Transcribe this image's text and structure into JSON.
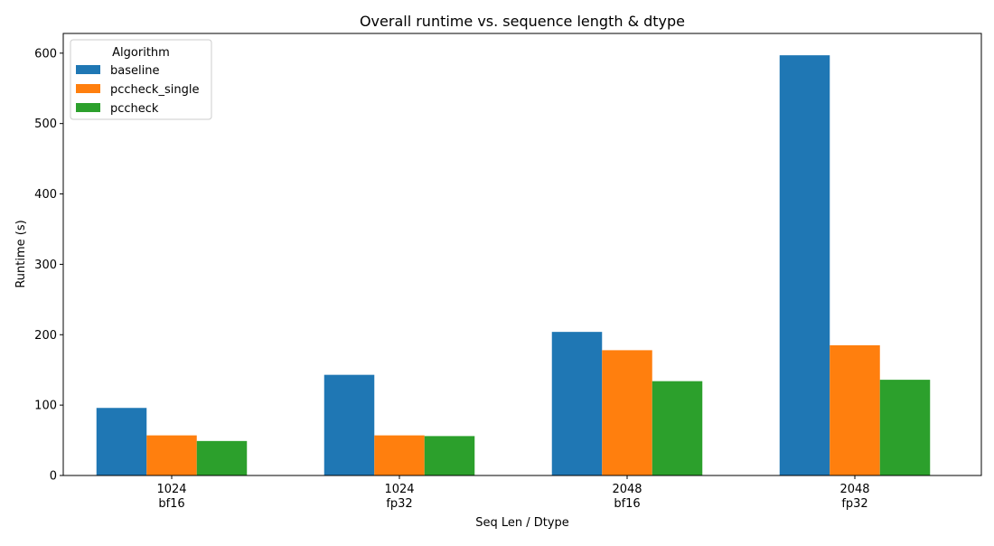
{
  "chart_data": {
    "type": "bar",
    "title": "Overall runtime vs. sequence length & dtype",
    "xlabel": "Seq Len / Dtype",
    "ylabel": "Runtime (s)",
    "categories": [
      [
        "1024",
        "bf16"
      ],
      [
        "1024",
        "fp32"
      ],
      [
        "2048",
        "bf16"
      ],
      [
        "2048",
        "fp32"
      ]
    ],
    "series": [
      {
        "name": "baseline",
        "color": "#1f77b4",
        "values": [
          96,
          143,
          204,
          597
        ]
      },
      {
        "name": "pccheck_single",
        "color": "#ff7f0e",
        "values": [
          57,
          57,
          178,
          185
        ]
      },
      {
        "name": "pccheck",
        "color": "#2ca02c",
        "values": [
          49,
          56,
          134,
          136
        ]
      }
    ],
    "ylim": [
      0,
      628
    ],
    "yticks": [
      0,
      100,
      200,
      300,
      400,
      500,
      600
    ],
    "legend": {
      "title": "Algorithm",
      "position": "top-left"
    },
    "grid": false
  }
}
